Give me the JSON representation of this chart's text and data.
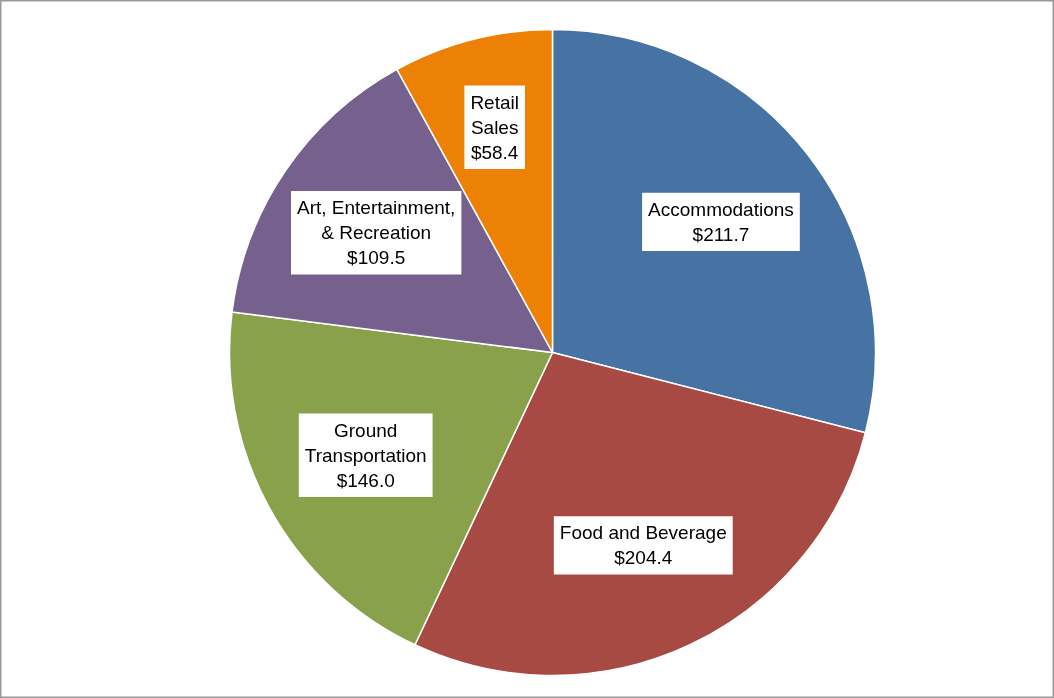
{
  "chart_data": {
    "type": "pie",
    "categories": [
      "Accommodations",
      "Food and Beverage",
      "Ground\nTransportation",
      "Art, Entertainment,\n& Recreation",
      "Retail\nSales"
    ],
    "values": [
      211.7,
      204.4,
      146.0,
      109.5,
      58.4
    ],
    "colors": [
      "#4672a4",
      "#a84a44",
      "#8aa14c",
      "#75608e",
      "#ec8106"
    ],
    "value_labels": [
      "$211.7",
      "$204.4",
      "$146.0",
      "$109.5",
      "$58.4"
    ],
    "legend": false
  }
}
